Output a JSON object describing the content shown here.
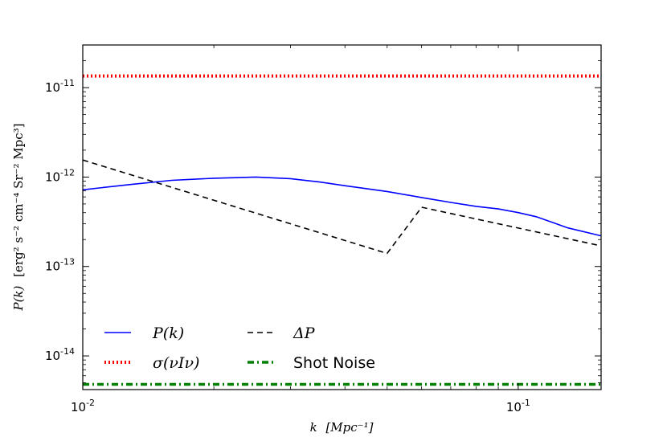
{
  "chart_data": {
    "type": "line",
    "title": "",
    "xlabel": "k [Mpc^-1]",
    "ylabel": "P(k) [erg^2 s^-2 cm^-4 Sr^-2 Mpc^3]",
    "xscale": "log",
    "yscale": "log",
    "xlim": [
      0.01,
      0.155
    ],
    "ylim": [
      4.2e-15,
      3e-11
    ],
    "x_ticks": [
      {
        "value": 0.01,
        "label": "10^-2"
      },
      {
        "value": 0.1,
        "label": "10^-1"
      }
    ],
    "y_ticks": [
      {
        "value": 1e-14,
        "label": "10^-14"
      },
      {
        "value": 1e-13,
        "label": "10^-13"
      },
      {
        "value": 1e-12,
        "label": "10^-12"
      },
      {
        "value": 1e-11,
        "label": "10^-11"
      }
    ],
    "legend_position": "lower-left",
    "series": [
      {
        "name": "P(k)",
        "color": "#0000ff",
        "style": "solid",
        "x": [
          0.01,
          0.013,
          0.016,
          0.02,
          0.025,
          0.03,
          0.035,
          0.04,
          0.05,
          0.06,
          0.07,
          0.08,
          0.09,
          0.1,
          0.11,
          0.12,
          0.13,
          0.155
        ],
        "y": [
          7.2e-13,
          8.3e-13,
          9.2e-13,
          9.7e-13,
          1e-12,
          9.6e-13,
          8.8e-13,
          8e-13,
          6.9e-13,
          5.9e-13,
          5.2e-13,
          4.7e-13,
          4.4e-13,
          4e-13,
          3.6e-13,
          3.1e-13,
          2.7e-13,
          2.2e-13
        ]
      },
      {
        "name": "ΔP",
        "color": "#000000",
        "style": "dashed",
        "x": [
          0.01,
          0.05,
          0.06,
          0.155
        ],
        "y": [
          1.55e-12,
          1.4e-13,
          4.6e-13,
          1.7e-13
        ]
      },
      {
        "name": "σ(νIν)",
        "color": "#ff0000",
        "style": "dotted",
        "x": [
          0.01,
          0.155
        ],
        "y": [
          1.35e-11,
          1.35e-11
        ]
      },
      {
        "name": "Shot Noise",
        "color": "#008000",
        "style": "dash-dot",
        "x": [
          0.01,
          0.155
        ],
        "y": [
          4.8e-15,
          4.8e-15
        ]
      }
    ]
  },
  "legend": {
    "pk_label": "P(k)",
    "deltap_label": "ΔP",
    "sigma_label": "σ(νIν)",
    "shot_label": "Shot Noise"
  },
  "labels": {
    "ylabel_math": "P(k)",
    "ylabel_units": "[erg² s⁻² cm⁻⁴ Sr⁻² Mpc³]",
    "xlabel_math": "k",
    "xlabel_units": "[Mpc⁻¹]"
  }
}
